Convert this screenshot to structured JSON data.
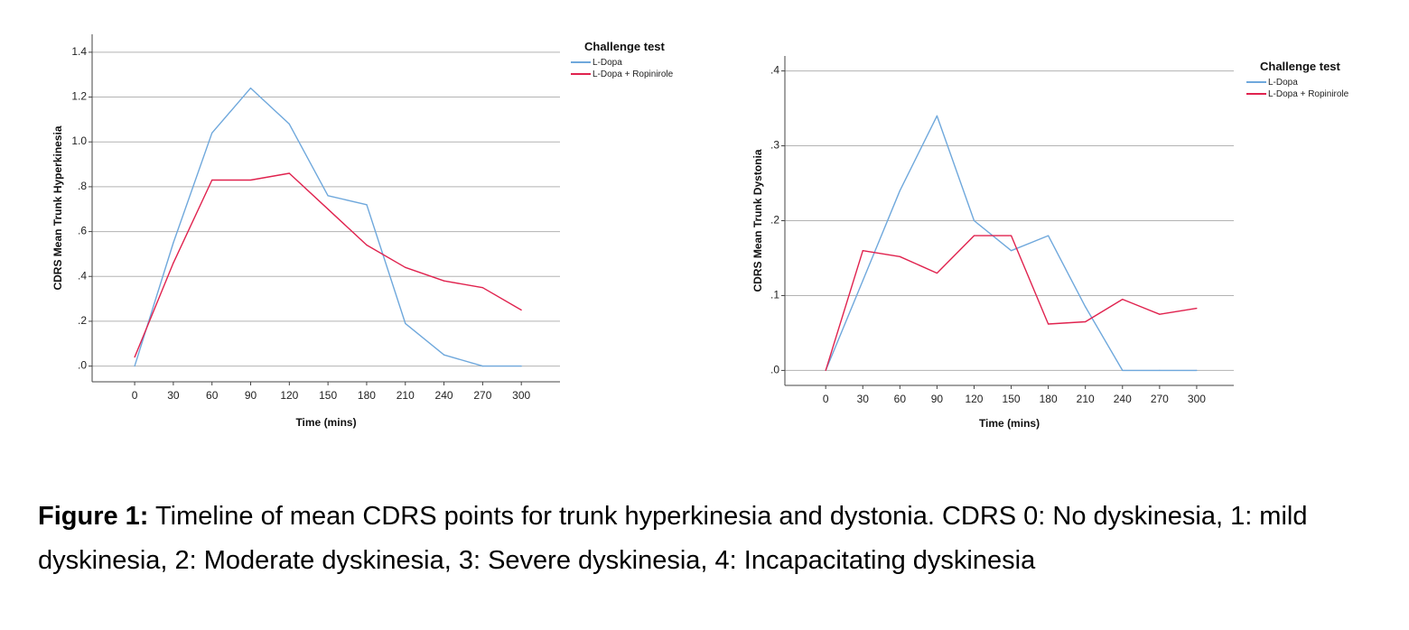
{
  "caption": {
    "label": "Figure 1:",
    "text": " Timeline of mean CDRS points for trunk hyperkinesia and dystonia. CDRS 0: No dyskinesia, 1: mild dyskinesia, 2: Moderate dyskinesia, 3: Severe dyskinesia, 4: Incapacitating dyskinesia"
  },
  "colors": {
    "ldopa": "#6fa8dc",
    "ldopa_ropinirole": "#e0224e",
    "grid": "#b3b3b3",
    "axis": "#444444"
  },
  "chart_data": [
    {
      "type": "line",
      "title": "",
      "xlabel": "Time (mins)",
      "ylabel": "CDRS Mean Trunk Hyperkinesia",
      "x": [
        0,
        30,
        60,
        90,
        120,
        150,
        180,
        210,
        240,
        270,
        300
      ],
      "xticks": [
        "0",
        "30",
        "60",
        "90",
        "120",
        "150",
        "180",
        "210",
        "240",
        "270",
        "300"
      ],
      "ylim": [
        -0.07,
        1.48
      ],
      "yticks": [
        0,
        0.2,
        0.4,
        0.6,
        0.8,
        1.0,
        1.2,
        1.4
      ],
      "ytick_labels": [
        ".0",
        ".2",
        ".4",
        ".6",
        ".8",
        "1.0",
        "1.2",
        "1.4"
      ],
      "xlim": [
        -33,
        330
      ],
      "grid": true,
      "legend": {
        "title": "Challenge test",
        "placement": "top-right"
      },
      "series": [
        {
          "name": "L-Dopa",
          "values": [
            0.0,
            0.55,
            1.04,
            1.24,
            1.08,
            0.76,
            0.72,
            0.19,
            0.05,
            0.0,
            0.0
          ]
        },
        {
          "name": "L-Dopa + Ropinirole",
          "values": [
            0.04,
            0.46,
            0.83,
            0.83,
            0.86,
            0.7,
            0.54,
            0.44,
            0.38,
            0.35,
            0.25
          ]
        }
      ]
    },
    {
      "type": "line",
      "title": "",
      "xlabel": "Time (mins)",
      "ylabel": "CDRS Mean Trunk Dystonia",
      "x": [
        0,
        30,
        60,
        90,
        120,
        150,
        180,
        210,
        240,
        270,
        300
      ],
      "xticks": [
        "0",
        "30",
        "60",
        "90",
        "120",
        "150",
        "180",
        "210",
        "240",
        "270",
        "300"
      ],
      "ylim": [
        -0.02,
        0.42
      ],
      "yticks": [
        0,
        0.1,
        0.2,
        0.3,
        0.4
      ],
      "ytick_labels": [
        ".0",
        ".1",
        ".2",
        ".3",
        ".4"
      ],
      "xlim": [
        -33,
        330
      ],
      "grid": true,
      "legend": {
        "title": "Challenge test",
        "placement": "top-right"
      },
      "series": [
        {
          "name": "L-Dopa",
          "values": [
            0.0,
            0.12,
            0.24,
            0.34,
            0.2,
            0.16,
            0.18,
            0.085,
            0.0,
            0.0,
            0.0
          ]
        },
        {
          "name": "L-Dopa + Ropinirole",
          "values": [
            0.0,
            0.16,
            0.152,
            0.13,
            0.18,
            0.18,
            0.062,
            0.065,
            0.095,
            0.075,
            0.083
          ]
        }
      ]
    }
  ]
}
